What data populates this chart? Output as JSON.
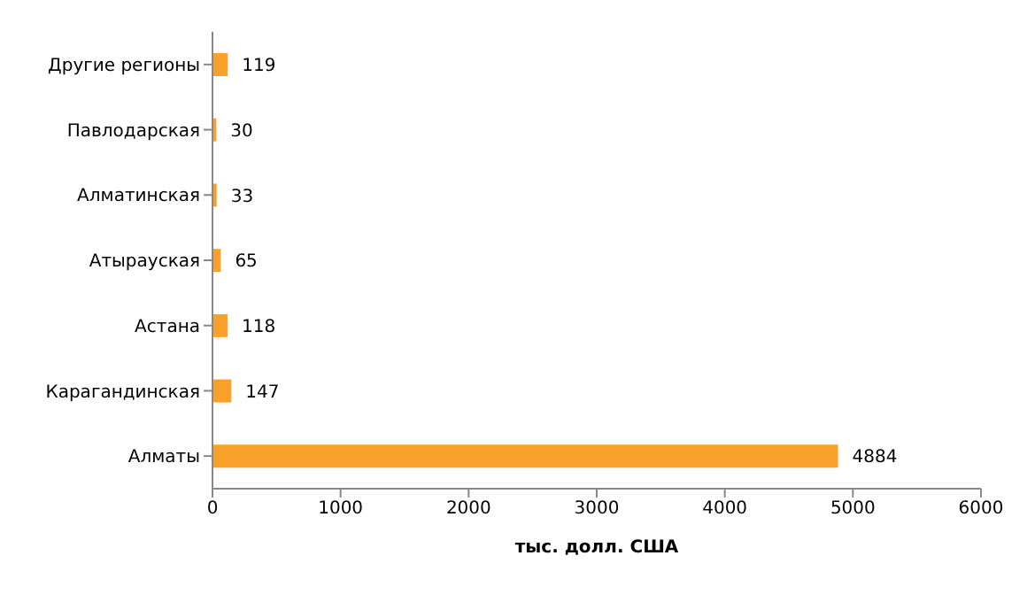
{
  "chart_data": {
    "type": "bar",
    "orientation": "horizontal",
    "xlabel": "тыс. долл. США",
    "categories": [
      "Другие регионы",
      "Павлодарская",
      "Алматинская",
      "Атырауская",
      "Астана",
      "Карагандинская",
      "Алматы"
    ],
    "values": [
      119,
      30,
      33,
      65,
      118,
      147,
      4884
    ],
    "color": "#f9a12a",
    "data_labels": true,
    "xlim": [
      0,
      6000
    ],
    "xticks": [
      0,
      1000,
      2000,
      3000,
      4000,
      5000,
      6000
    ]
  }
}
